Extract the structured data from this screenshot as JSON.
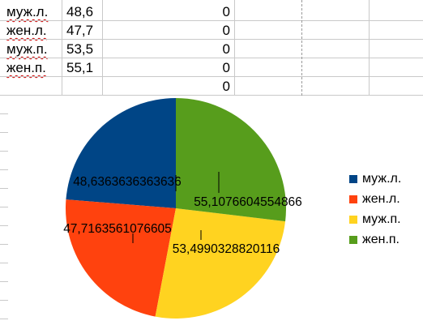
{
  "sheet": {
    "rows": [
      {
        "label": "муж.л.",
        "value": "48,6",
        "col": "0"
      },
      {
        "label": "жен.л.",
        "value": "47,7",
        "col": "0"
      },
      {
        "label": "муж.п.",
        "value": "53,5",
        "col": "0"
      },
      {
        "label": "жен.п.",
        "value": "55,1",
        "col": "0"
      },
      {
        "label": "",
        "value": "",
        "col": "0"
      }
    ]
  },
  "chart_data": {
    "type": "pie",
    "categories": [
      "муж.л.",
      "жен.л.",
      "муж.п.",
      "жен.п."
    ],
    "values": [
      48.6363636363636,
      47.7163561076605,
      53.4990328820116,
      55.1076604554866
    ],
    "data_labels": [
      "48,6363636363636",
      "47,7163561076605",
      "53,4990328820116",
      "55,1076604554866"
    ],
    "colors": [
      "#004586",
      "#ff420e",
      "#ffd320",
      "#579d1c"
    ],
    "legend_position": "right",
    "title": ""
  }
}
